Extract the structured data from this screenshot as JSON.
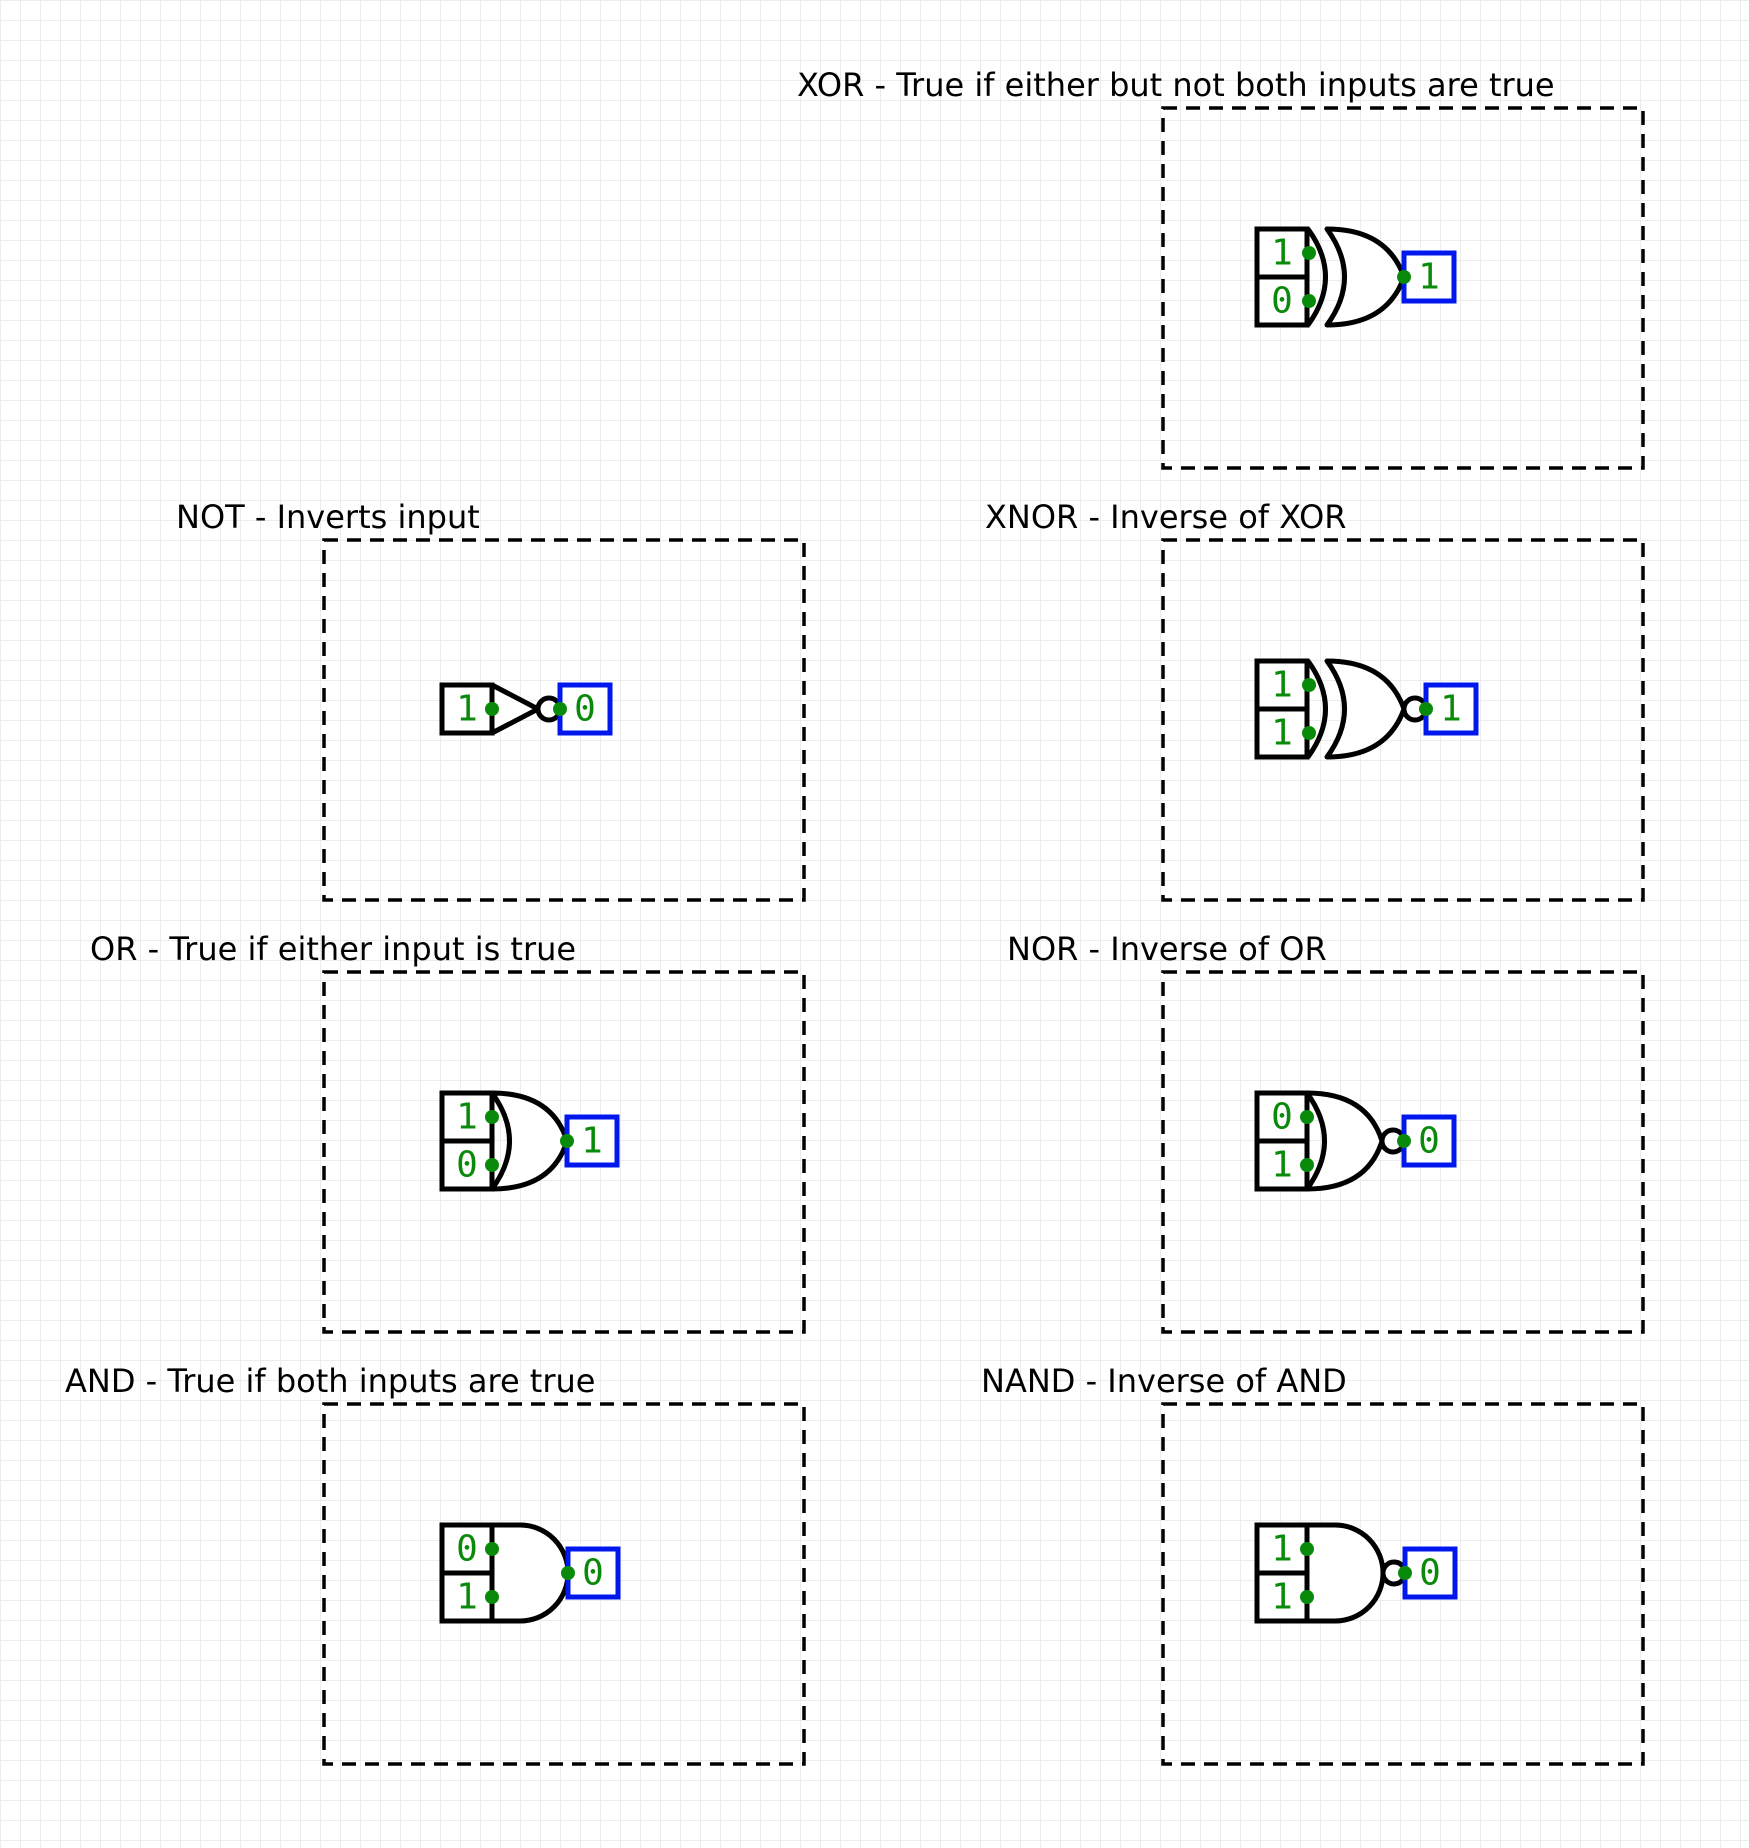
{
  "colors": {
    "wire_dot": "#0a8a0a",
    "bit_text": "#0a8a0a",
    "output_box": "#0018ee",
    "stroke": "#000000"
  },
  "panels": [
    {
      "id": "xor",
      "label": "XOR - True if either but not both inputs are true",
      "gate_icon": "xor-gate-icon",
      "inputs": [
        "1",
        "0"
      ],
      "output": "1"
    },
    {
      "id": "not",
      "label": "NOT - Inverts input",
      "gate_icon": "not-gate-icon",
      "inputs": [
        "1"
      ],
      "output": "0"
    },
    {
      "id": "xnor",
      "label": "XNOR - Inverse of XOR",
      "gate_icon": "xnor-gate-icon",
      "inputs": [
        "1",
        "1"
      ],
      "output": "1"
    },
    {
      "id": "or",
      "label": "OR - True if either input is true",
      "gate_icon": "or-gate-icon",
      "inputs": [
        "1",
        "0"
      ],
      "output": "1"
    },
    {
      "id": "nor",
      "label": "NOR - Inverse of OR",
      "gate_icon": "nor-gate-icon",
      "inputs": [
        "0",
        "1"
      ],
      "output": "0"
    },
    {
      "id": "and",
      "label": "AND - True if both inputs are true",
      "gate_icon": "and-gate-icon",
      "inputs": [
        "0",
        "1"
      ],
      "output": "0"
    },
    {
      "id": "nand",
      "label": "NAND - Inverse of AND",
      "gate_icon": "nand-gate-icon",
      "inputs": [
        "1",
        "1"
      ],
      "output": "0"
    }
  ]
}
